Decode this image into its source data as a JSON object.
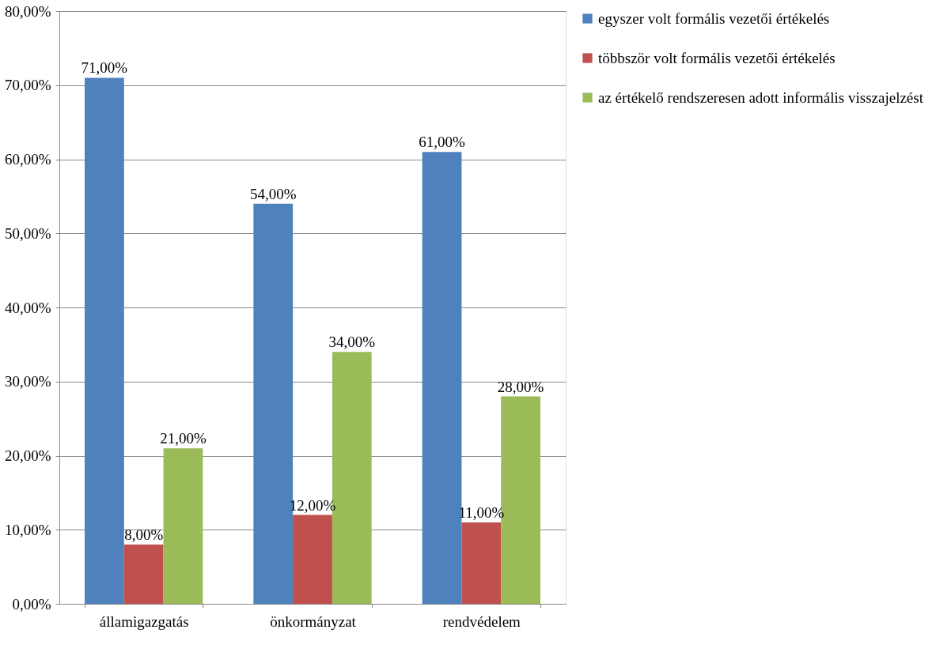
{
  "chart_data": {
    "type": "bar",
    "categories": [
      "államigazgatás",
      "önkormányzat",
      "rendvédelem"
    ],
    "series": [
      {
        "name": "egyszer volt formális vezetői értékelés",
        "color": "#4f81bd",
        "values": [
          71,
          54,
          61
        ],
        "value_labels": [
          "71,00%",
          "54,00%",
          "61,00%"
        ]
      },
      {
        "name": "többször volt formális vezetői értékelés",
        "color": "#c0504d",
        "values": [
          8,
          12,
          11
        ],
        "value_labels": [
          "8,00%",
          "12,00%",
          "11,00%"
        ]
      },
      {
        "name": "az értékelő rendszeresen adott informális visszajelzést",
        "color": "#9bbb59",
        "values": [
          21,
          34,
          28
        ],
        "value_labels": [
          "21,00%",
          "34,00%",
          "28,00%"
        ]
      }
    ],
    "ylim": [
      0,
      80
    ],
    "yticks": [
      {
        "value": 0,
        "label": "0,00%"
      },
      {
        "value": 10,
        "label": "10,00%"
      },
      {
        "value": 20,
        "label": "20,00%"
      },
      {
        "value": 30,
        "label": "30,00%"
      },
      {
        "value": 40,
        "label": "40,00%"
      },
      {
        "value": 50,
        "label": "50,00%"
      },
      {
        "value": 60,
        "label": "60,00%"
      },
      {
        "value": 70,
        "label": "70,00%"
      },
      {
        "value": 80,
        "label": "80,00%"
      }
    ],
    "grid": "y",
    "legend": "right"
  }
}
